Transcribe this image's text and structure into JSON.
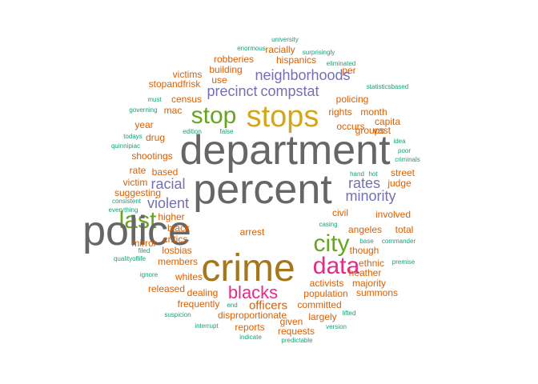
{
  "word_cloud": {
    "palette": {
      "gray": "#666666",
      "gold": "#d4a61a",
      "green": "#66a61e",
      "purple": "#7570b3",
      "magenta": "#e7298a",
      "orange": "#d95f02",
      "teal": "#1b9e77",
      "brown": "#a6761d"
    },
    "words": [
      {
        "text": "university",
        "weight": 1,
        "color": "teal"
      },
      {
        "text": "enormous",
        "weight": 1,
        "color": "teal"
      },
      {
        "text": "racially",
        "weight": 3,
        "color": "orange"
      },
      {
        "text": "surprisingly",
        "weight": 1,
        "color": "teal"
      },
      {
        "text": "robberies",
        "weight": 3,
        "color": "orange"
      },
      {
        "text": "hispanics",
        "weight": 3,
        "color": "orange"
      },
      {
        "text": "eliminated",
        "weight": 1,
        "color": "teal"
      },
      {
        "text": "building",
        "weight": 3,
        "color": "orange"
      },
      {
        "text": "per",
        "weight": 3,
        "color": "orange"
      },
      {
        "text": "victims",
        "weight": 3,
        "color": "orange"
      },
      {
        "text": "neighborhoods",
        "weight": 5,
        "color": "purple"
      },
      {
        "text": "use",
        "weight": 3,
        "color": "orange"
      },
      {
        "text": "statisticsbased",
        "weight": 1,
        "color": "teal"
      },
      {
        "text": "stopandfrisk",
        "weight": 3,
        "color": "orange"
      },
      {
        "text": "census",
        "weight": 3,
        "color": "orange"
      },
      {
        "text": "precinct",
        "weight": 5,
        "color": "purple"
      },
      {
        "text": "compstat",
        "weight": 5,
        "color": "purple"
      },
      {
        "text": "policing",
        "weight": 3,
        "color": "orange"
      },
      {
        "text": "must",
        "weight": 1,
        "color": "teal"
      },
      {
        "text": "stop",
        "weight": 7,
        "color": "green"
      },
      {
        "text": "stops",
        "weight": 8,
        "color": "gold"
      },
      {
        "text": "rights",
        "weight": 3,
        "color": "orange"
      },
      {
        "text": "month",
        "weight": 3,
        "color": "orange"
      },
      {
        "text": "governing",
        "weight": 1,
        "color": "teal"
      },
      {
        "text": "mac",
        "weight": 3,
        "color": "orange"
      },
      {
        "text": "capita",
        "weight": 3,
        "color": "orange"
      },
      {
        "text": "occurs",
        "weight": 3,
        "color": "orange"
      },
      {
        "text": "groups",
        "weight": 3,
        "color": "orange"
      },
      {
        "text": "year",
        "weight": 3,
        "color": "orange"
      },
      {
        "text": "edition",
        "weight": 1,
        "color": "teal"
      },
      {
        "text": "false",
        "weight": 1,
        "color": "teal"
      },
      {
        "text": "vast",
        "weight": 3,
        "color": "orange"
      },
      {
        "text": "todays",
        "weight": 1,
        "color": "teal"
      },
      {
        "text": "drug",
        "weight": 3,
        "color": "orange"
      },
      {
        "text": "quinnipiac",
        "weight": 1,
        "color": "teal"
      },
      {
        "text": "idea",
        "weight": 1,
        "color": "teal"
      },
      {
        "text": "department",
        "weight": 10,
        "color": "gray"
      },
      {
        "text": "poor",
        "weight": 1,
        "color": "teal"
      },
      {
        "text": "shootings",
        "weight": 3,
        "color": "orange"
      },
      {
        "text": "criminals",
        "weight": 1,
        "color": "teal"
      },
      {
        "text": "rate",
        "weight": 3,
        "color": "orange"
      },
      {
        "text": "based",
        "weight": 3,
        "color": "orange"
      },
      {
        "text": "hand",
        "weight": 1,
        "color": "teal"
      },
      {
        "text": "hot",
        "weight": 1,
        "color": "teal"
      },
      {
        "text": "street",
        "weight": 3,
        "color": "orange"
      },
      {
        "text": "victim",
        "weight": 3,
        "color": "orange"
      },
      {
        "text": "percent",
        "weight": 10,
        "color": "gray"
      },
      {
        "text": "racial",
        "weight": 5,
        "color": "purple"
      },
      {
        "text": "rates",
        "weight": 5,
        "color": "purple"
      },
      {
        "text": "judge",
        "weight": 3,
        "color": "orange"
      },
      {
        "text": "suggesting",
        "weight": 3,
        "color": "orange"
      },
      {
        "text": "minority",
        "weight": 5,
        "color": "purple"
      },
      {
        "text": "consistent",
        "weight": 1,
        "color": "teal"
      },
      {
        "text": "violent",
        "weight": 5,
        "color": "purple"
      },
      {
        "text": "everything",
        "weight": 1,
        "color": "teal"
      },
      {
        "text": "civil",
        "weight": 3,
        "color": "orange"
      },
      {
        "text": "involved",
        "weight": 3,
        "color": "orange"
      },
      {
        "text": "last",
        "weight": 7,
        "color": "green"
      },
      {
        "text": "higher",
        "weight": 3,
        "color": "orange"
      },
      {
        "text": "arrest",
        "weight": 3,
        "color": "orange"
      },
      {
        "text": "police",
        "weight": 10,
        "color": "gray"
      },
      {
        "text": "casing",
        "weight": 1,
        "color": "teal"
      },
      {
        "text": "black",
        "weight": 3,
        "color": "orange"
      },
      {
        "text": "angeles",
        "weight": 3,
        "color": "orange"
      },
      {
        "text": "total",
        "weight": 3,
        "color": "orange"
      },
      {
        "text": "city",
        "weight": 7,
        "color": "green"
      },
      {
        "text": "critics",
        "weight": 3,
        "color": "orange"
      },
      {
        "text": "base",
        "weight": 1,
        "color": "teal"
      },
      {
        "text": "commander",
        "weight": 1,
        "color": "teal"
      },
      {
        "text": "mirror",
        "weight": 3,
        "color": "orange"
      },
      {
        "text": "filed",
        "weight": 1,
        "color": "teal"
      },
      {
        "text": "losbias",
        "weight": 3,
        "color": "orange"
      },
      {
        "text": "though",
        "weight": 3,
        "color": "orange"
      },
      {
        "text": "qualityoflife",
        "weight": 1,
        "color": "teal"
      },
      {
        "text": "members",
        "weight": 3,
        "color": "orange"
      },
      {
        "text": "crime",
        "weight": 9,
        "color": "brown"
      },
      {
        "text": "data",
        "weight": 7,
        "color": "magenta"
      },
      {
        "text": "ethnic",
        "weight": 3,
        "color": "orange"
      },
      {
        "text": "premise",
        "weight": 1,
        "color": "teal"
      },
      {
        "text": "ignore",
        "weight": 1,
        "color": "teal"
      },
      {
        "text": "heather",
        "weight": 3,
        "color": "orange"
      },
      {
        "text": "whites",
        "weight": 3,
        "color": "orange"
      },
      {
        "text": "majority",
        "weight": 3,
        "color": "orange"
      },
      {
        "text": "activists",
        "weight": 3,
        "color": "orange"
      },
      {
        "text": "released",
        "weight": 3,
        "color": "orange"
      },
      {
        "text": "blacks",
        "weight": 6,
        "color": "magenta"
      },
      {
        "text": "dealing",
        "weight": 3,
        "color": "orange"
      },
      {
        "text": "population",
        "weight": 3,
        "color": "orange"
      },
      {
        "text": "summons",
        "weight": 3,
        "color": "orange"
      },
      {
        "text": "frequently",
        "weight": 3,
        "color": "orange"
      },
      {
        "text": "end",
        "weight": 1,
        "color": "teal"
      },
      {
        "text": "officers",
        "weight": 4,
        "color": "orange"
      },
      {
        "text": "committed",
        "weight": 3,
        "color": "orange"
      },
      {
        "text": "lifted",
        "weight": 1,
        "color": "teal"
      },
      {
        "text": "suspicion",
        "weight": 1,
        "color": "teal"
      },
      {
        "text": "disproportionate",
        "weight": 3,
        "color": "orange"
      },
      {
        "text": "largely",
        "weight": 3,
        "color": "orange"
      },
      {
        "text": "given",
        "weight": 3,
        "color": "orange"
      },
      {
        "text": "interrupt",
        "weight": 1,
        "color": "teal"
      },
      {
        "text": "reports",
        "weight": 3,
        "color": "orange"
      },
      {
        "text": "requests",
        "weight": 3,
        "color": "orange"
      },
      {
        "text": "version",
        "weight": 1,
        "color": "teal"
      },
      {
        "text": "indicate",
        "weight": 1,
        "color": "teal"
      },
      {
        "text": "predictable",
        "weight": 1,
        "color": "teal"
      }
    ]
  }
}
